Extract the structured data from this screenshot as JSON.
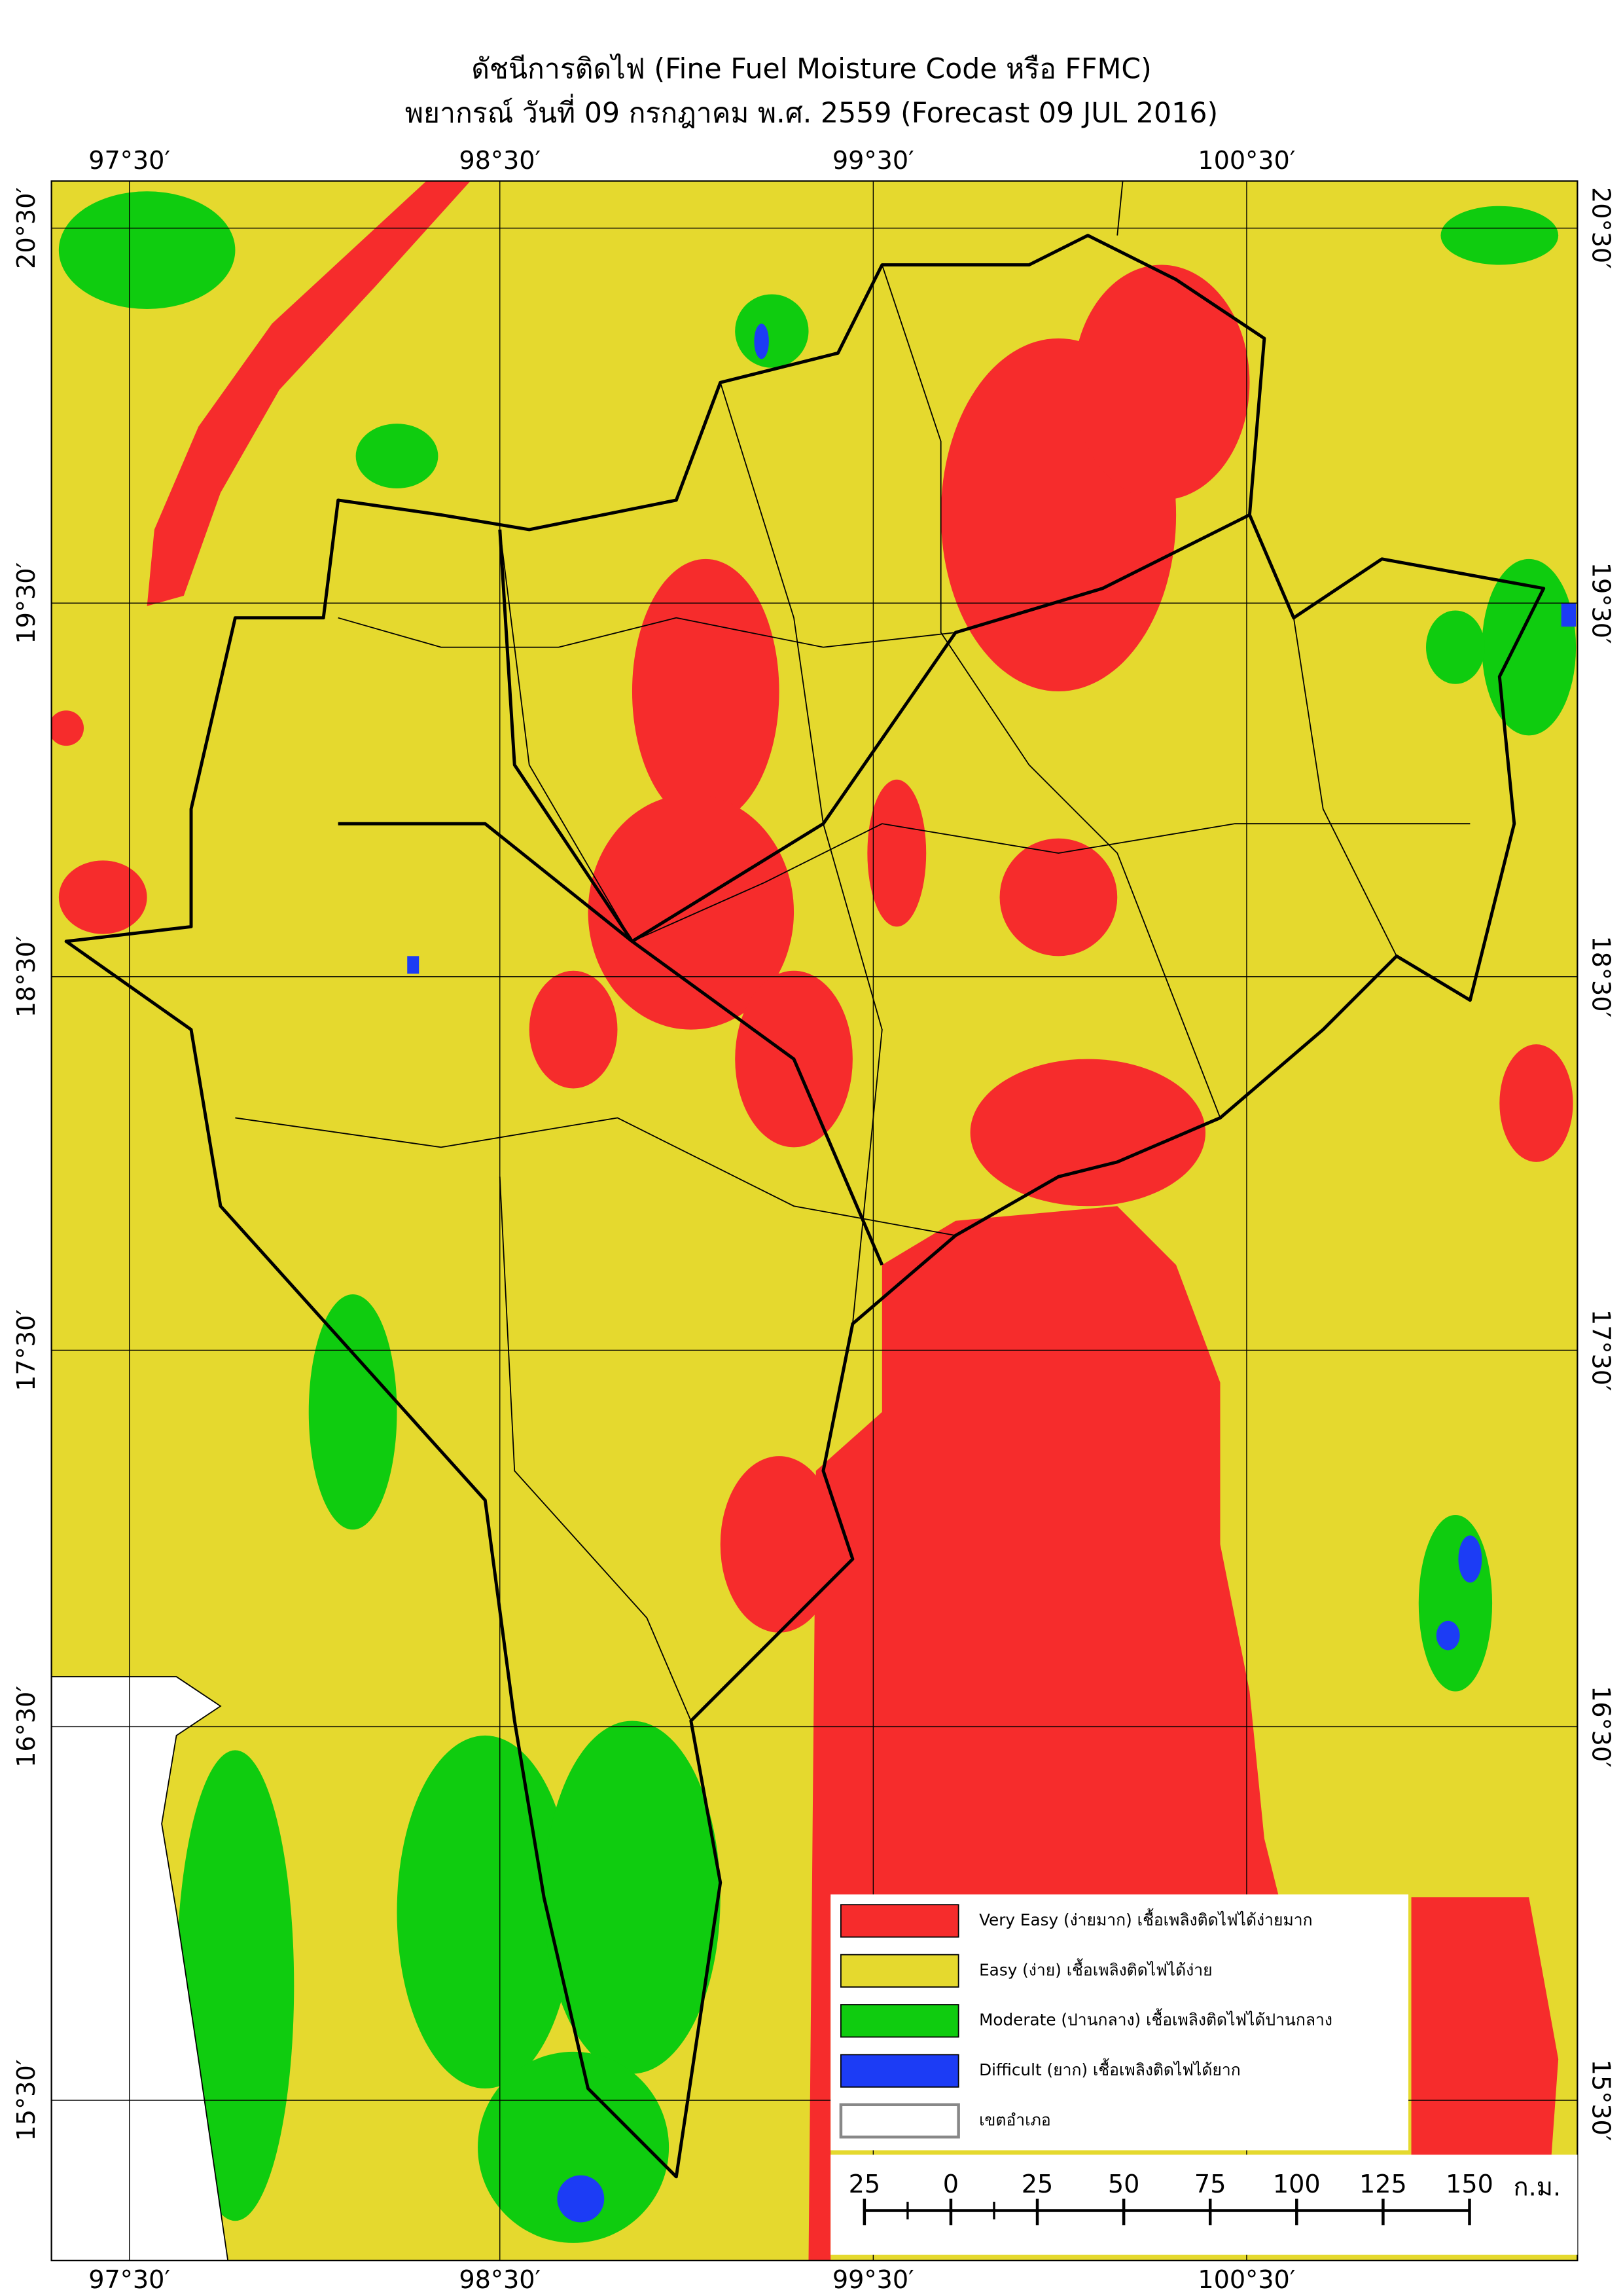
{
  "header": {
    "title": "ดัชนีการติดไฟ (Fine Fuel Moisture Code หรือ FFMC)",
    "subtitle": "พยากรณ์ วันที่ 09 กรกฎาคม พ.ศ. 2559 (Forecast 09 JUL 2016)"
  },
  "longitudes": [
    "97°30′",
    "98°30′",
    "99°30′",
    "100°30′"
  ],
  "latitudes": [
    "20°30′",
    "19°30′",
    "18°30′",
    "17°30′",
    "16°30′",
    "15°30′"
  ],
  "legend": [
    {
      "label": "Very Easy (ง่ายมาก) เชื้อเพลิงติดไฟได้ง่ายมาก",
      "color": "#f62c2c"
    },
    {
      "label": "Easy (ง่าย) เชื้อเพลิงติดไฟได้ง่าย",
      "color": "#e5d92e"
    },
    {
      "label": "Moderate (ปานกลาง) เชื้อเพลิงติดไฟได้ปานกลาง",
      "color": "#0fcc0f"
    },
    {
      "label": "Difficult (ยาก) เชื้อเพลิงติดไฟได้ยาก",
      "color": "#1c3cf5"
    },
    {
      "label": "เขตอำเภอ",
      "color": "#ffffff"
    }
  ],
  "scale_bar": {
    "labels": [
      "25",
      "0",
      "25",
      "50",
      "75",
      "100",
      "125",
      "150"
    ],
    "unit": "ก.ม."
  }
}
